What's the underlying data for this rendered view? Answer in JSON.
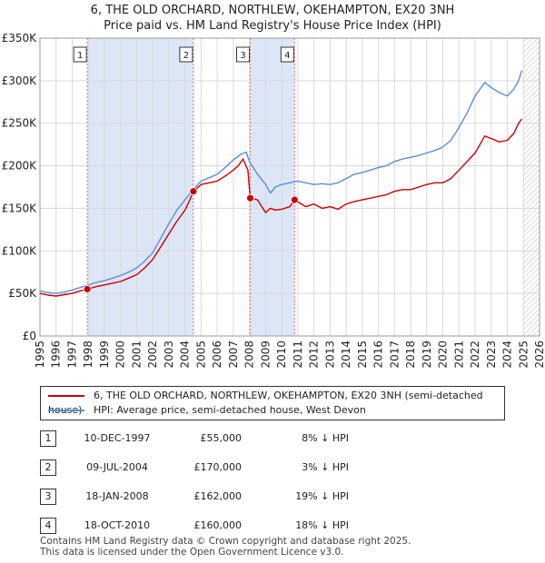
{
  "title_line1": "6, THE OLD ORCHARD, NORTHLEW, OKEHAMPTON, EX20 3NH",
  "title_line2": "Price paid vs. HM Land Registry's House Price Index (HPI)",
  "legend": {
    "property": "6, THE OLD ORCHARD, NORTHLEW, OKEHAMPTON, EX20 3NH (semi-detached house)",
    "hpi": "HPI: Average price, semi-detached house, West Devon"
  },
  "colors": {
    "property": "#cc0000",
    "hpi": "#5b8fd6",
    "shade": "#dde6f6",
    "grid": "#d9d9d9"
  },
  "sales": [
    {
      "num": "1",
      "date": "10-DEC-1997",
      "price": "£55,000",
      "hpi": "8% ↓ HPI"
    },
    {
      "num": "2",
      "date": "09-JUL-2004",
      "price": "£170,000",
      "hpi": "3% ↓ HPI"
    },
    {
      "num": "3",
      "date": "18-JAN-2008",
      "price": "£162,000",
      "hpi": "19% ↓ HPI"
    },
    {
      "num": "4",
      "date": "18-OCT-2010",
      "price": "£160,000",
      "hpi": "18% ↓ HPI"
    }
  ],
  "footer_line1": "Contains HM Land Registry data © Crown copyright and database right 2025.",
  "footer_line2": "This data is licensed under the Open Government Licence v3.0.",
  "chart_data": {
    "type": "line",
    "title": "Price paid vs. HM Land Registry's House Price Index (HPI)",
    "xlim": [
      1995,
      2026
    ],
    "ylim": [
      0,
      350000
    ],
    "x_ticks": [
      1995,
      1996,
      1997,
      1998,
      1999,
      2000,
      2001,
      2002,
      2003,
      2004,
      2005,
      2006,
      2007,
      2008,
      2009,
      2010,
      2011,
      2012,
      2013,
      2014,
      2015,
      2016,
      2017,
      2018,
      2019,
      2020,
      2021,
      2022,
      2023,
      2024,
      2025,
      2026
    ],
    "y_ticks": [
      0,
      50000,
      100000,
      150000,
      200000,
      250000,
      300000,
      350000
    ],
    "y_tick_labels": [
      "£0",
      "£50K",
      "£100K",
      "£150K",
      "£200K",
      "£250K",
      "£300K",
      "£350K"
    ],
    "shaded_periods": [
      [
        1997.94,
        2004.52
      ],
      [
        2008.05,
        2010.8
      ]
    ],
    "forecast_start": 2025.0,
    "sale_markers": [
      {
        "label": "1",
        "x": 1997.94,
        "y": 55000
      },
      {
        "label": "2",
        "x": 2004.52,
        "y": 170000
      },
      {
        "label": "3",
        "x": 2008.05,
        "y": 162000
      },
      {
        "label": "4",
        "x": 2010.8,
        "y": 160000
      }
    ],
    "series": [
      {
        "name": "6, THE OLD ORCHARD, NORTHLEW, OKEHAMPTON, EX20 3NH (semi-detached house)",
        "x": [
          1995,
          1995.5,
          1996,
          1996.5,
          1997,
          1997.5,
          1997.94,
          1998.5,
          1999,
          1999.5,
          2000,
          2000.5,
          2001,
          2001.5,
          2002,
          2002.5,
          2003,
          2003.5,
          2004,
          2004.3,
          2004.52,
          2005,
          2005.5,
          2006,
          2006.5,
          2007,
          2007.3,
          2007.6,
          2007.9,
          2008.05,
          2008.5,
          2009,
          2009.3,
          2009.6,
          2010,
          2010.5,
          2010.8,
          2011.5,
          2012,
          2012.5,
          2013,
          2013.5,
          2014,
          2014.5,
          2015,
          2015.5,
          2016,
          2016.5,
          2017,
          2017.5,
          2018,
          2018.5,
          2019,
          2019.5,
          2020,
          2020.5,
          2021,
          2021.5,
          2022,
          2022.3,
          2022.6,
          2023,
          2023.5,
          2024,
          2024.4,
          2024.7,
          2024.9
        ],
        "values": [
          50000,
          48000,
          47000,
          48500,
          50000,
          53000,
          55000,
          58000,
          60000,
          62000,
          64000,
          68000,
          72000,
          80000,
          90000,
          105000,
          120000,
          135000,
          148000,
          160000,
          170000,
          178000,
          180000,
          182000,
          188000,
          195000,
          200000,
          208000,
          195000,
          162000,
          160000,
          145000,
          150000,
          148000,
          149000,
          152000,
          160000,
          152000,
          155000,
          150000,
          152000,
          149000,
          155000,
          158000,
          160000,
          162000,
          164000,
          166000,
          170000,
          172000,
          172000,
          175000,
          178000,
          180000,
          180000,
          185000,
          195000,
          205000,
          215000,
          225000,
          235000,
          232000,
          228000,
          230000,
          238000,
          250000,
          255000
        ]
      },
      {
        "name": "HPI: Average price, semi-detached house, West Devon",
        "x": [
          1995,
          1995.5,
          1996,
          1996.5,
          1997,
          1997.5,
          1998,
          1998.5,
          1999,
          1999.5,
          2000,
          2000.5,
          2001,
          2001.5,
          2002,
          2002.5,
          2003,
          2003.5,
          2004,
          2004.5,
          2005,
          2005.5,
          2006,
          2006.5,
          2007,
          2007.5,
          2007.8,
          2008,
          2008.5,
          2009,
          2009.3,
          2009.6,
          2010,
          2010.5,
          2011,
          2011.5,
          2012,
          2012.5,
          2013,
          2013.5,
          2014,
          2014.5,
          2015,
          2015.5,
          2016,
          2016.5,
          2017,
          2017.5,
          2018,
          2018.5,
          2019,
          2019.5,
          2020,
          2020.5,
          2021,
          2021.5,
          2022,
          2022.3,
          2022.6,
          2023,
          2023.5,
          2024,
          2024.4,
          2024.7,
          2024.9
        ],
        "values": [
          53000,
          51000,
          50000,
          51500,
          54000,
          57000,
          60000,
          63000,
          65000,
          68000,
          71000,
          75000,
          80000,
          88000,
          98000,
          115000,
          132000,
          148000,
          160000,
          172000,
          182000,
          186000,
          190000,
          198000,
          207000,
          214000,
          216000,
          205000,
          190000,
          178000,
          168000,
          175000,
          178000,
          180000,
          182000,
          180000,
          178000,
          179000,
          178000,
          180000,
          185000,
          190000,
          192000,
          195000,
          198000,
          200000,
          205000,
          208000,
          210000,
          212000,
          215000,
          218000,
          222000,
          230000,
          245000,
          262000,
          282000,
          290000,
          298000,
          292000,
          286000,
          282000,
          290000,
          300000,
          312000
        ]
      }
    ]
  }
}
